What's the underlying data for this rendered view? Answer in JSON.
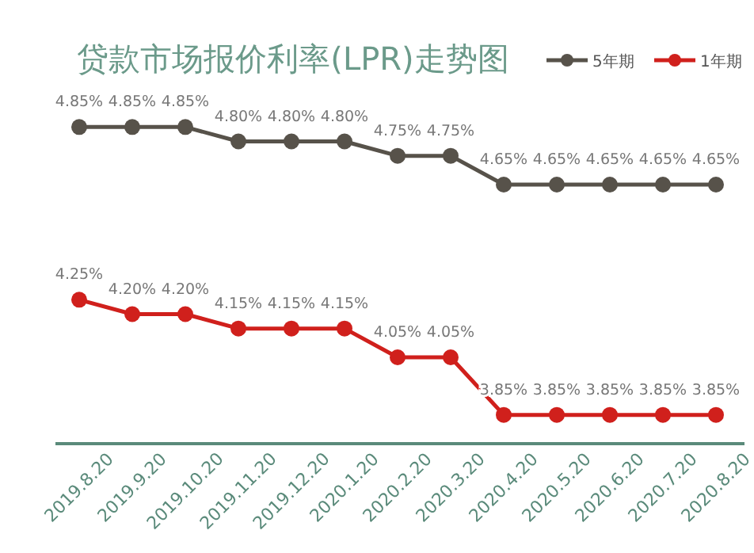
{
  "chart_data": {
    "type": "line",
    "title": "贷款市场报价利率(LPR)走势图",
    "categories": [
      "2019.8.20",
      "2019.9.20",
      "2019.10.20",
      "2019.11.20",
      "2019.12.20",
      "2020.1.20",
      "2020.2.20",
      "2020.3.20",
      "2020.4.20",
      "2020.5.20",
      "2020.6.20",
      "2020.7.20",
      "2020.8.20"
    ],
    "series": [
      {
        "name": "5年期",
        "color": "#57524a",
        "values": [
          4.85,
          4.85,
          4.85,
          4.8,
          4.8,
          4.8,
          4.75,
          4.75,
          4.65,
          4.65,
          4.65,
          4.65,
          4.65
        ],
        "value_labels": [
          "4.85%",
          "4.85%",
          "4.85%",
          "4.80%",
          "4.80%",
          "4.80%",
          "4.75%",
          "4.75%",
          "4.65%",
          "4.65%",
          "4.65%",
          "4.65%",
          "4.65%"
        ]
      },
      {
        "name": "1年期",
        "color": "#d0201c",
        "values": [
          4.25,
          4.2,
          4.2,
          4.15,
          4.15,
          4.15,
          4.05,
          4.05,
          3.85,
          3.85,
          3.85,
          3.85,
          3.85
        ],
        "value_labels": [
          "4.25%",
          "4.20%",
          "4.20%",
          "4.15%",
          "4.15%",
          "4.15%",
          "4.05%",
          "4.05%",
          "3.85%",
          "3.85%",
          "3.85%",
          "3.85%",
          "3.85%"
        ]
      }
    ],
    "legend": "top right",
    "marker": "circle",
    "line_style": "solid"
  }
}
